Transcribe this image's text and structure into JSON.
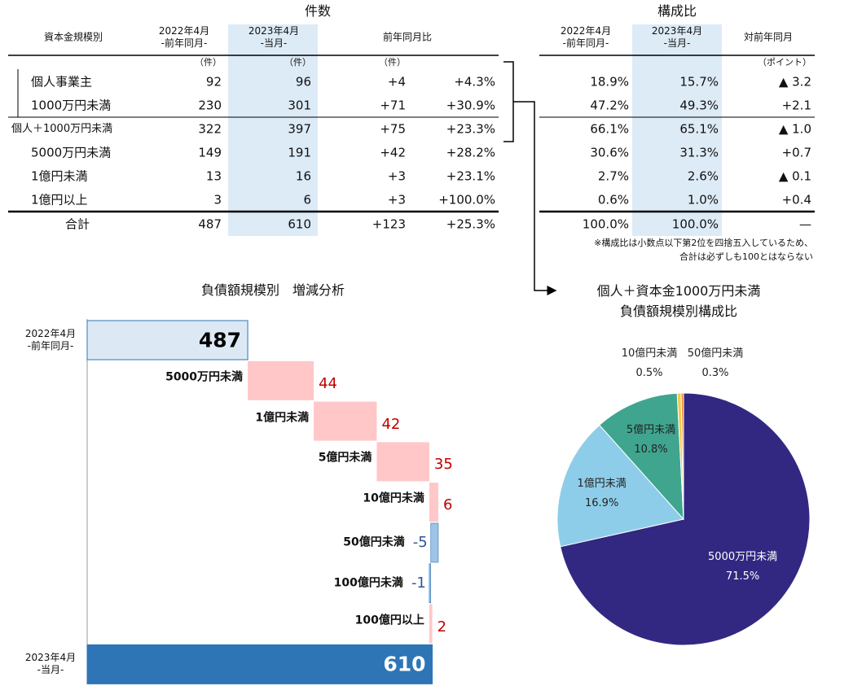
{
  "tables": [
    {
      "title": "件数",
      "header": [
        "資本金規模別",
        "2022年4月\n-前年同月-",
        "2023年4月\n-当月-",
        "前年同月比"
      ],
      "units": [
        "（件）",
        "（件）",
        "（件）"
      ],
      "rows": [
        [
          "個人事業主",
          "92",
          "96",
          "+4",
          "+4.3%"
        ],
        [
          "1000万円未満",
          "230",
          "301",
          "+71",
          "+30.9%"
        ],
        [
          "個人＋1000万円未満",
          "322",
          "397",
          "+75",
          "+23.3%"
        ],
        [
          "5000万円未満",
          "149",
          "191",
          "+42",
          "+28.2%"
        ],
        [
          "1億円未満",
          "13",
          "16",
          "+3",
          "+23.1%"
        ],
        [
          "1億円以上",
          "3",
          "6",
          "+3",
          "+100.0%"
        ],
        [
          "合計",
          "487",
          "610",
          "+123",
          "+25.3%"
        ]
      ]
    },
    {
      "title": "構成比",
      "header": [
        "2022年4月\n-前年同月-",
        "2023年4月\n-当月-",
        "対前年同月"
      ],
      "units": [
        "（ポイント）"
      ],
      "rows": [
        [
          "18.9%",
          "15.7%",
          "▲ 3.2"
        ],
        [
          "47.2%",
          "49.3%",
          "+2.1"
        ],
        [
          "66.1%",
          "65.1%",
          "▲ 1.0"
        ],
        [
          "30.6%",
          "31.3%",
          "+0.7"
        ],
        [
          "2.7%",
          "2.6%",
          "▲ 0.1"
        ],
        [
          "0.6%",
          "1.0%",
          "+0.4"
        ],
        [
          "100.0%",
          "100.0%",
          "—"
        ]
      ]
    }
  ],
  "note": [
    "※構成比は小数点以下第2位を四捨五入しているため、",
    "合計は必ずしも100とはならない"
  ],
  "chart_data": [
    {
      "type": "waterfall",
      "title": "負債額規模別　増減分析",
      "categories": [
        "2022年4月\n-前年同月-",
        "5000万円未満",
        "1億円未満",
        "5億円未満",
        "10億円未満",
        "50億円未満",
        "100億円未満",
        "100億円以上",
        "2023年4月\n-当月-"
      ],
      "values": [
        487,
        44,
        42,
        35,
        6,
        -5,
        -1,
        2,
        610
      ],
      "xlim": [
        380,
        620
      ],
      "colors": {
        "start": "#dce9f5",
        "increase": "#ffc7c7",
        "decrease": "#9dc3e6",
        "end": "#2e75b6"
      },
      "label_colors": {
        "increase": "#c00000",
        "decrease": "#2f5597"
      }
    },
    {
      "type": "pie",
      "title": "個人＋資本金1000万円未満\n負債額規模別構成比",
      "categories": [
        "5000万円未満",
        "1億円未満",
        "5億円未満",
        "10億円未満",
        "50億円未満"
      ],
      "values": [
        71.5,
        16.9,
        10.8,
        0.5,
        0.3
      ],
      "value_labels": [
        "71.5%",
        "16.9%",
        "10.8%",
        "0.5%",
        "0.3%"
      ],
      "colors": [
        "#322882",
        "#8ecde9",
        "#3fa58f",
        "#f2c94c",
        "#e8873a"
      ]
    }
  ]
}
